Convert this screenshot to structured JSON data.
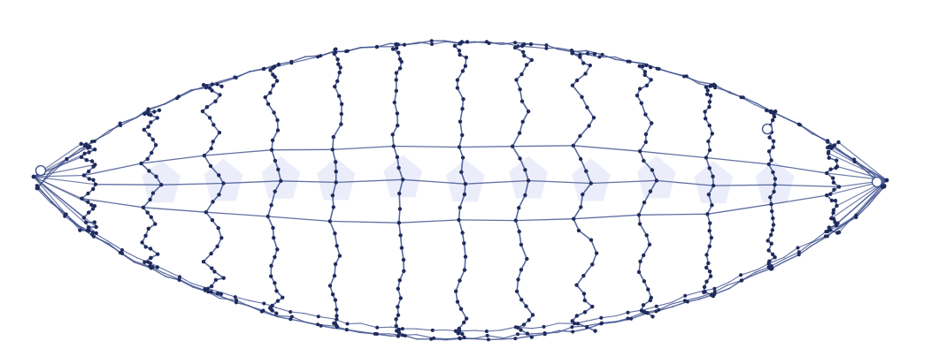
{
  "figure": {
    "kind": "spindle-shaped network graph (wireframe mesh)",
    "edge_color": "#3c4d8c",
    "node_color": "#1f2b5c",
    "highlight_color": "#dde3f6",
    "rings": 13,
    "meridians": 13,
    "open_markers": 3
  }
}
